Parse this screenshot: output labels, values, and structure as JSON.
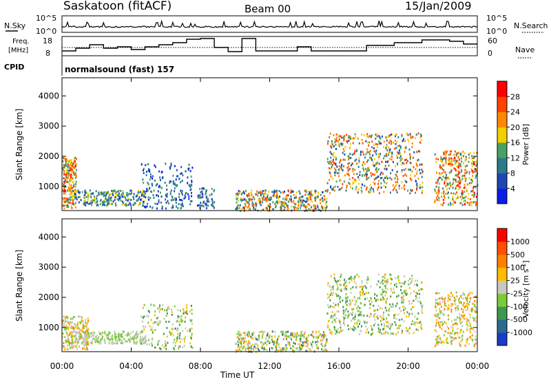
{
  "header": {
    "station": "Saskatoon (fitACF)",
    "beam": "Beam 00",
    "date": "15/Jan/2009"
  },
  "top_panels": {
    "nsky_label": "N.Sky",
    "nsky_ticks": [
      "10^5",
      "10^0"
    ],
    "nsearch_label": "N.Search",
    "nsearch_ticks": [
      "10^5",
      "10^0"
    ],
    "freq_label_1": "Freq.",
    "freq_label_2": "[MHz]",
    "freq_ticks": [
      "18",
      "8"
    ],
    "nave_label": "Nave",
    "nave_ticks": [
      "60",
      "0"
    ],
    "cpid_label": "CPID",
    "cpid_text": "normalsound (fast) 157"
  },
  "colors": {
    "power_scale": [
      "#0a1ee6",
      "#1e46b4",
      "#2a7a8a",
      "#4aa060",
      "#f0d000",
      "#ff8800",
      "#ff4400",
      "#ff0000"
    ],
    "velocity_scale": [
      "#1a3cc8",
      "#2a6c90",
      "#3c9850",
      "#7acb3a",
      "#c8c8c0",
      "#ffbb00",
      "#ff8000",
      "#ff5000",
      "#ff0000"
    ]
  },
  "chart_data": [
    {
      "type": "heatmap",
      "ylabel": "Slant Range [km]",
      "ylim": [
        200,
        4600
      ],
      "y_ticks": [
        "4000",
        "3000",
        "2000",
        "1000"
      ],
      "colorbar_label": "Power [dB]",
      "colorbar_ticks": [
        "28",
        "24",
        "20",
        "16",
        "12",
        "8",
        "4"
      ],
      "colorbar_range": [
        0,
        32
      ]
    },
    {
      "type": "heatmap",
      "ylabel": "Slant Range [km]",
      "ylim": [
        200,
        4600
      ],
      "y_ticks": [
        "4000",
        "3000",
        "2000",
        "1000"
      ],
      "colorbar_label": "Velocity [m s",
      "colorbar_label_sup": "-1",
      "colorbar_label_end": "]",
      "colorbar_ticks": [
        "1000",
        "500",
        "100",
        "25",
        "-25",
        "-100",
        "-500",
        "-1000"
      ]
    }
  ],
  "x_axis": {
    "ticks": [
      "00:00",
      "04:00",
      "08:00",
      "12:00",
      "16:00",
      "20:00",
      "00:00"
    ],
    "label": "Time UT"
  }
}
